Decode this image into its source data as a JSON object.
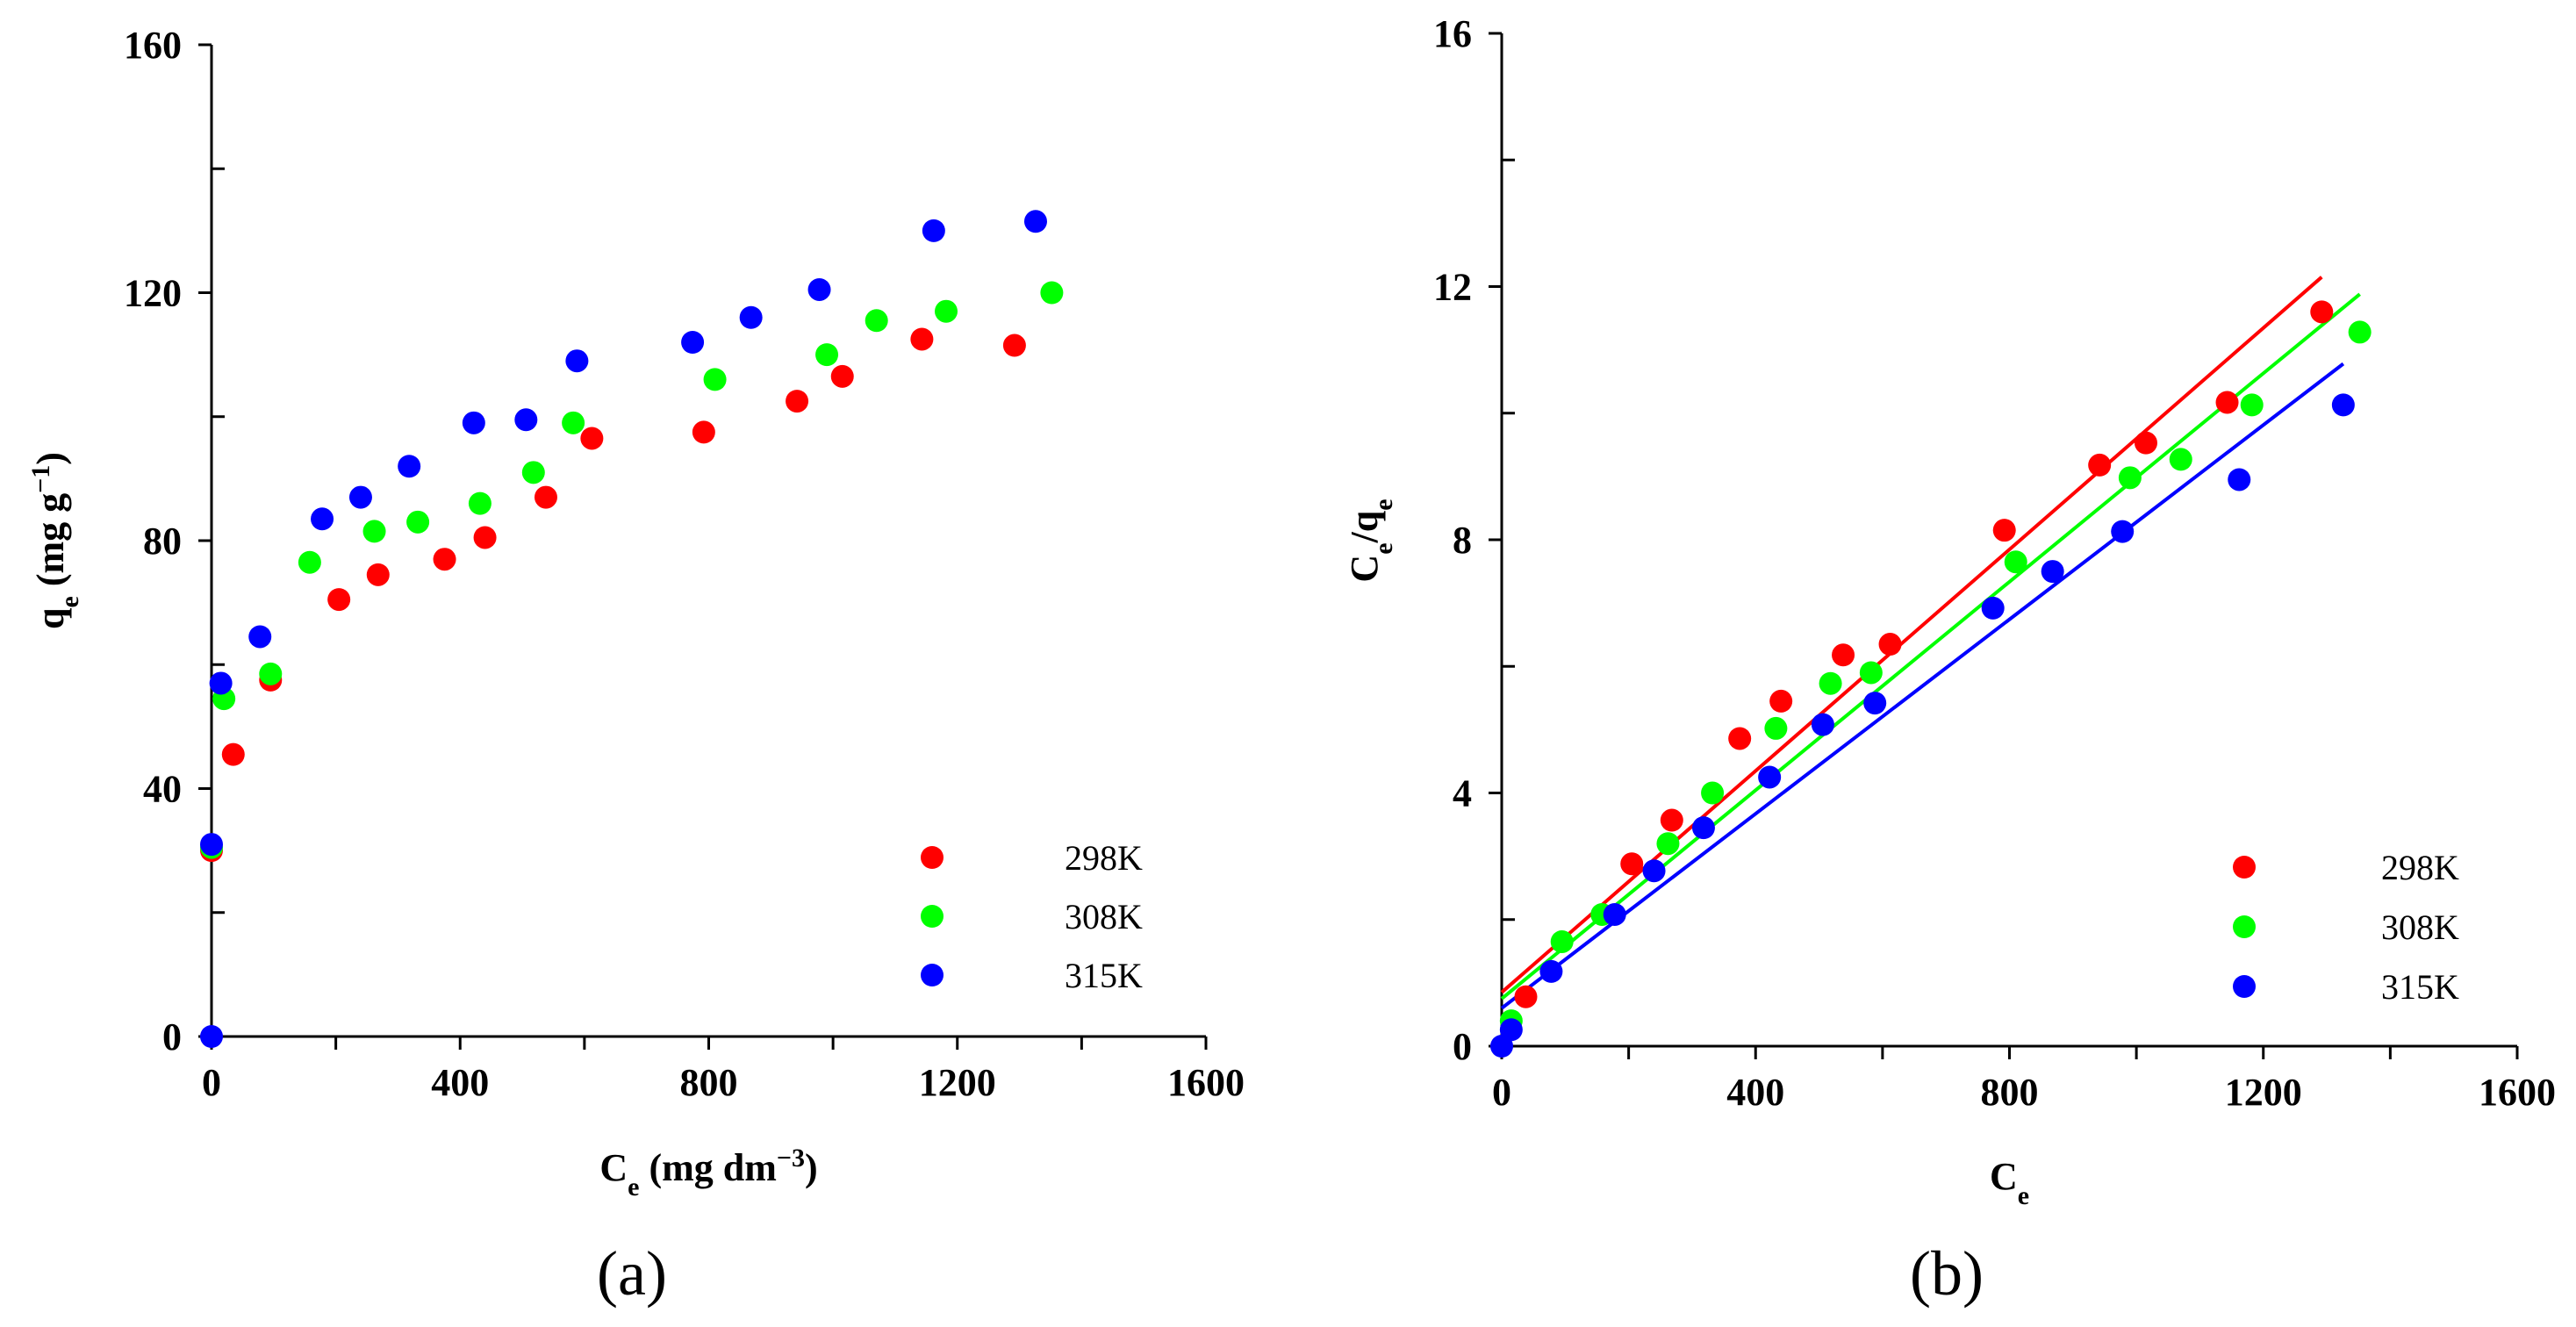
{
  "chart_data": [
    {
      "id": "a",
      "type": "scatter",
      "panel_label": "(a)",
      "xlabel": {
        "main": "C",
        "sub": "e",
        "rest": " (mg dm",
        "sup": "−3",
        "end": ")"
      },
      "ylabel": {
        "main": "q",
        "sub": "e",
        "rest": " (mg g",
        "sup": "−1",
        "end": ")"
      },
      "xlim": [
        0,
        1600
      ],
      "ylim": [
        0,
        160
      ],
      "xticks": [
        0,
        400,
        800,
        1200,
        1600
      ],
      "yticks": [
        0,
        40,
        80,
        120,
        160
      ],
      "legend_position": "bottom-right",
      "series": [
        {
          "name": "298K",
          "color": "#ff0000",
          "points": [
            [
              0,
              30
            ],
            [
              35,
              45.5
            ],
            [
              95,
              57.5
            ],
            [
              205,
              70.5
            ],
            [
              268,
              74.5
            ],
            [
              375,
              77
            ],
            [
              440,
              80.5
            ],
            [
              538,
              87
            ],
            [
              612,
              96.5
            ],
            [
              792,
              97.5
            ],
            [
              942,
              102.5
            ],
            [
              1015,
              106.5
            ],
            [
              1143,
              112.5
            ],
            [
              1292,
              111.5
            ]
          ]
        },
        {
          "name": "308K",
          "color": "#00ff00",
          "points": [
            [
              0,
              30.5
            ],
            [
              20,
              54.5
            ],
            [
              95,
              58.5
            ],
            [
              158,
              76.5
            ],
            [
              262,
              81.5
            ],
            [
              332,
              83
            ],
            [
              432,
              86
            ],
            [
              518,
              91
            ],
            [
              582,
              99
            ],
            [
              810,
              106
            ],
            [
              990,
              110
            ],
            [
              1070,
              115.5
            ],
            [
              1182,
              117
            ],
            [
              1352,
              120
            ]
          ]
        },
        {
          "name": "315K",
          "color": "#0000ff",
          "points": [
            [
              0,
              0
            ],
            [
              0,
              31
            ],
            [
              15,
              57
            ],
            [
              78,
              64.5
            ],
            [
              178,
              83.5
            ],
            [
              240,
              87
            ],
            [
              318,
              92
            ],
            [
              422,
              99
            ],
            [
              506,
              99.5
            ],
            [
              588,
              109
            ],
            [
              774,
              112
            ],
            [
              868,
              116
            ],
            [
              978,
              120.5
            ],
            [
              1162,
              130
            ],
            [
              1326,
              131.5
            ]
          ]
        }
      ]
    },
    {
      "id": "b",
      "type": "scatter",
      "panel_label": "(b)",
      "xlabel": {
        "main": "C",
        "sub": "e",
        "rest": "",
        "sup": "",
        "end": ""
      },
      "ylabel": {
        "main": "C",
        "sub": "e",
        "rest": "/q",
        "sub2": "e"
      },
      "xlim": [
        0,
        1600
      ],
      "ylim": [
        0,
        16
      ],
      "xticks": [
        0,
        400,
        800,
        1200,
        1600
      ],
      "yticks": [
        0,
        4,
        8,
        12,
        16
      ],
      "legend_position": "bottom-right",
      "series": [
        {
          "name": "298K",
          "color": "#ff0000",
          "points": [
            [
              38,
              0.78
            ],
            [
              205,
              2.88
            ],
            [
              268,
              3.57
            ],
            [
              375,
              4.86
            ],
            [
              440,
              5.45
            ],
            [
              538,
              6.18
            ],
            [
              612,
              6.35
            ],
            [
              792,
              8.15
            ],
            [
              942,
              9.18
            ],
            [
              1015,
              9.53
            ],
            [
              1143,
              10.17
            ],
            [
              1292,
              11.6
            ]
          ],
          "fit_line": [
            [
              0,
              0.85
            ],
            [
              1292,
              12.15
            ]
          ]
        },
        {
          "name": "308K",
          "color": "#00ff00",
          "points": [
            [
              15,
              0.4
            ],
            [
              95,
              1.65
            ],
            [
              158,
              2.08
            ],
            [
              262,
              3.2
            ],
            [
              332,
              4.0
            ],
            [
              432,
              5.02
            ],
            [
              518,
              5.73
            ],
            [
              582,
              5.9
            ],
            [
              810,
              7.65
            ],
            [
              990,
              8.98
            ],
            [
              1070,
              9.27
            ],
            [
              1182,
              10.13
            ],
            [
              1352,
              11.28
            ]
          ],
          "fit_line": [
            [
              0,
              0.75
            ],
            [
              1352,
              11.88
            ]
          ]
        },
        {
          "name": "315K",
          "color": "#0000ff",
          "points": [
            [
              0,
              0.0
            ],
            [
              15,
              0.26
            ],
            [
              78,
              1.18
            ],
            [
              178,
              2.08
            ],
            [
              240,
              2.77
            ],
            [
              318,
              3.45
            ],
            [
              422,
              4.25
            ],
            [
              506,
              5.08
            ],
            [
              588,
              5.42
            ],
            [
              774,
              6.92
            ],
            [
              868,
              7.5
            ],
            [
              978,
              8.13
            ],
            [
              1162,
              8.95
            ],
            [
              1326,
              10.13
            ]
          ],
          "fit_line": [
            [
              0,
              0.6
            ],
            [
              1326,
              10.78
            ]
          ]
        }
      ]
    }
  ]
}
